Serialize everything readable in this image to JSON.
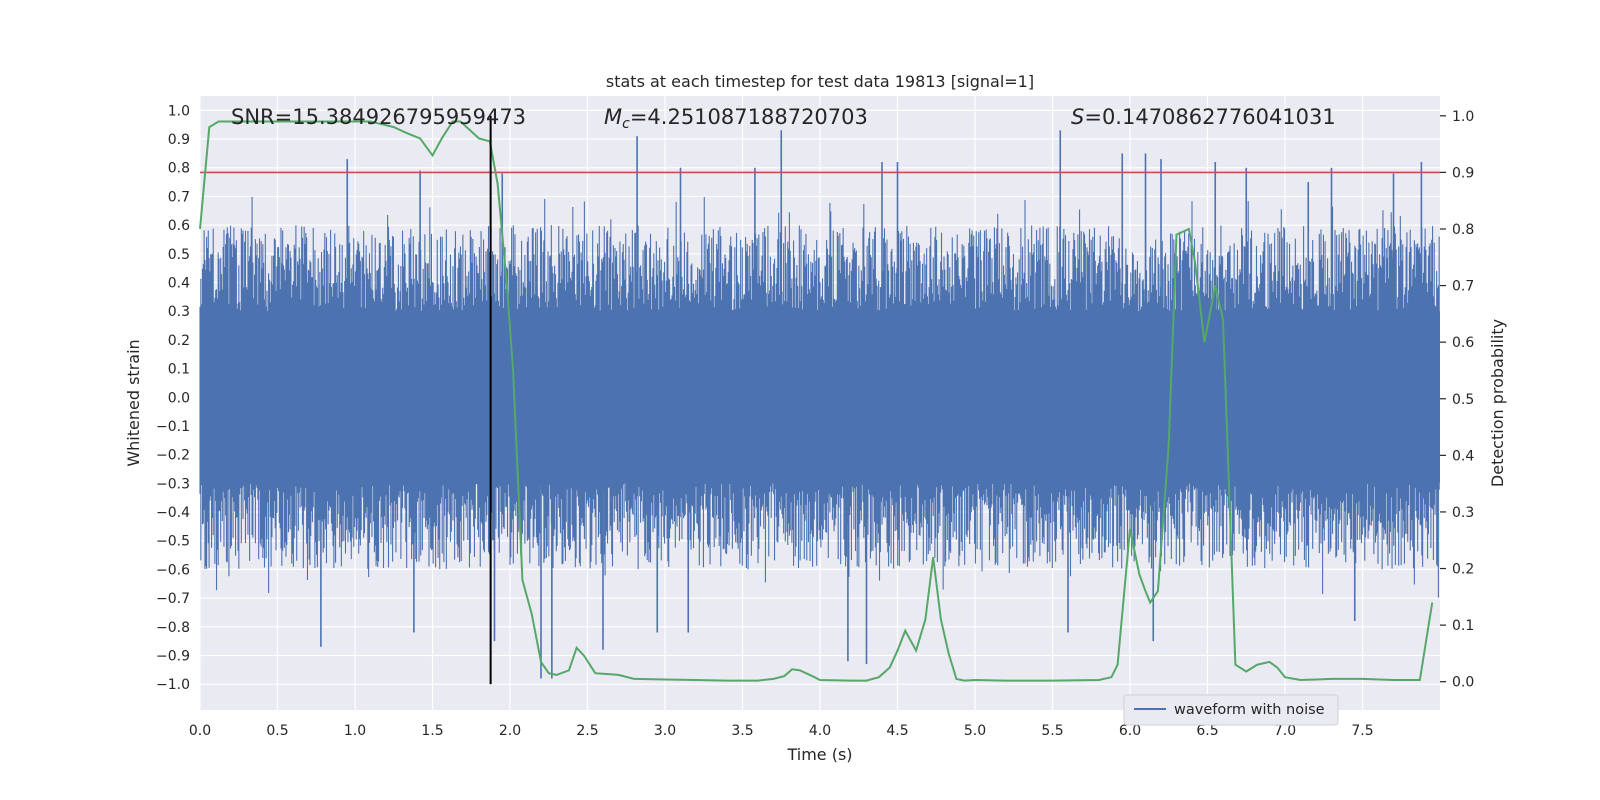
{
  "chart_data": {
    "type": "line",
    "title": "stats at each timestep for test data 19813 [signal=1]",
    "xlabel": "Time (s)",
    "ylabel_left": "Whitened strain",
    "ylabel_right": "Detection probability",
    "xlim": [
      0.0,
      8.0
    ],
    "ylim_left": [
      -1.09,
      1.05
    ],
    "ylim_right": [
      -0.05,
      1.035
    ],
    "xticks": [
      "0.0",
      "0.5",
      "1.0",
      "1.5",
      "2.0",
      "2.5",
      "3.0",
      "3.5",
      "4.0",
      "4.5",
      "5.0",
      "5.5",
      "6.0",
      "6.5",
      "7.0",
      "7.5"
    ],
    "yticks_left": [
      "1.0",
      "0.9",
      "0.8",
      "0.7",
      "0.6",
      "0.5",
      "0.4",
      "0.3",
      "0.2",
      "0.1",
      "0.0",
      "−0.1",
      "−0.2",
      "−0.3",
      "−0.4",
      "−0.5",
      "−0.6",
      "−0.7",
      "−0.8",
      "−0.9",
      "−1.0"
    ],
    "yticks_right": [
      "1.0",
      "0.9",
      "0.8",
      "0.7",
      "0.6",
      "0.5",
      "0.4",
      "0.3",
      "0.2",
      "0.1",
      "0.0"
    ],
    "annotations": {
      "snr": "SNR=15.384926795959473",
      "mc": "=4.251087188720703",
      "mc_symbol": "M",
      "mc_sub": "c",
      "s": "=0.1470862776041031",
      "s_symbol": "S"
    },
    "threshold_right": 0.9,
    "marker_time": 1.875,
    "legend": [
      "waveform with noise"
    ],
    "waveform": {
      "name": "waveform with noise",
      "duration": 8.0,
      "core_amplitude": 0.3,
      "typical_peak": 0.6,
      "seed": 19813,
      "tall_spikes": [
        [
          0.95,
          0.83
        ],
        [
          1.42,
          0.79
        ],
        [
          1.95,
          0.78
        ],
        [
          2.82,
          0.91
        ],
        [
          3.1,
          0.8
        ],
        [
          3.58,
          0.8
        ],
        [
          3.75,
          0.93
        ],
        [
          4.4,
          0.82
        ],
        [
          4.5,
          0.82
        ],
        [
          5.55,
          0.93
        ],
        [
          5.95,
          0.85
        ],
        [
          6.1,
          0.85
        ],
        [
          6.2,
          0.83
        ],
        [
          6.55,
          0.82
        ],
        [
          6.75,
          0.8
        ],
        [
          7.15,
          0.75
        ],
        [
          7.3,
          0.8
        ],
        [
          7.7,
          0.78
        ],
        [
          7.88,
          0.82
        ],
        [
          0.78,
          -0.87
        ],
        [
          1.38,
          -0.82
        ],
        [
          2.2,
          -0.98
        ],
        [
          2.27,
          -0.98
        ],
        [
          2.6,
          -0.88
        ],
        [
          2.95,
          -0.82
        ],
        [
          3.15,
          -0.82
        ],
        [
          4.18,
          -0.92
        ],
        [
          4.3,
          -0.93
        ],
        [
          5.6,
          -0.82
        ],
        [
          6.15,
          -0.85
        ],
        [
          7.45,
          -0.78
        ],
        [
          1.9,
          -0.85
        ]
      ]
    },
    "probability": {
      "name": "Detection probability",
      "x": [
        0.0,
        0.06,
        0.12,
        0.3,
        0.6,
        0.9,
        1.1,
        1.25,
        1.33,
        1.42,
        1.5,
        1.56,
        1.63,
        1.68,
        1.72,
        1.8,
        1.87,
        1.92,
        1.98,
        2.02,
        2.08,
        2.14,
        2.2,
        2.25,
        2.3,
        2.38,
        2.43,
        2.48,
        2.55,
        2.7,
        2.8,
        3.0,
        3.2,
        3.4,
        3.6,
        3.7,
        3.77,
        3.82,
        3.87,
        3.95,
        4.0,
        4.2,
        4.3,
        4.38,
        4.45,
        4.5,
        4.55,
        4.62,
        4.68,
        4.73,
        4.78,
        4.83,
        4.88,
        4.93,
        5.0,
        5.2,
        5.5,
        5.8,
        5.88,
        5.92,
        6.0,
        6.06,
        6.1,
        6.13,
        6.18,
        6.25,
        6.3,
        6.38,
        6.42,
        6.48,
        6.55,
        6.6,
        6.68,
        6.75,
        6.82,
        6.9,
        6.95,
        7.0,
        7.1,
        7.2,
        7.3,
        7.5,
        7.7,
        7.87,
        7.95
      ],
      "y": [
        0.8,
        0.98,
        0.99,
        0.99,
        0.99,
        0.99,
        0.99,
        0.98,
        0.97,
        0.96,
        0.93,
        0.96,
        0.99,
        0.99,
        0.98,
        0.96,
        0.955,
        0.88,
        0.7,
        0.55,
        0.18,
        0.12,
        0.035,
        0.015,
        0.012,
        0.02,
        0.06,
        0.045,
        0.015,
        0.012,
        0.005,
        0.004,
        0.003,
        0.002,
        0.002,
        0.005,
        0.01,
        0.022,
        0.02,
        0.01,
        0.003,
        0.002,
        0.002,
        0.008,
        0.025,
        0.055,
        0.09,
        0.055,
        0.11,
        0.22,
        0.11,
        0.05,
        0.005,
        0.002,
        0.003,
        0.002,
        0.002,
        0.003,
        0.008,
        0.03,
        0.27,
        0.19,
        0.16,
        0.14,
        0.16,
        0.42,
        0.79,
        0.8,
        0.74,
        0.6,
        0.7,
        0.64,
        0.03,
        0.018,
        0.03,
        0.035,
        0.025,
        0.008,
        0.003,
        0.004,
        0.005,
        0.005,
        0.003,
        0.003,
        0.14
      ]
    },
    "colors": {
      "waveform": "#4c72b0",
      "probability": "#55a868",
      "threshold": "#c44e52",
      "marker": "#000000",
      "background": "#eaeaf2",
      "grid": "#ffffff",
      "text": "#262626"
    }
  }
}
